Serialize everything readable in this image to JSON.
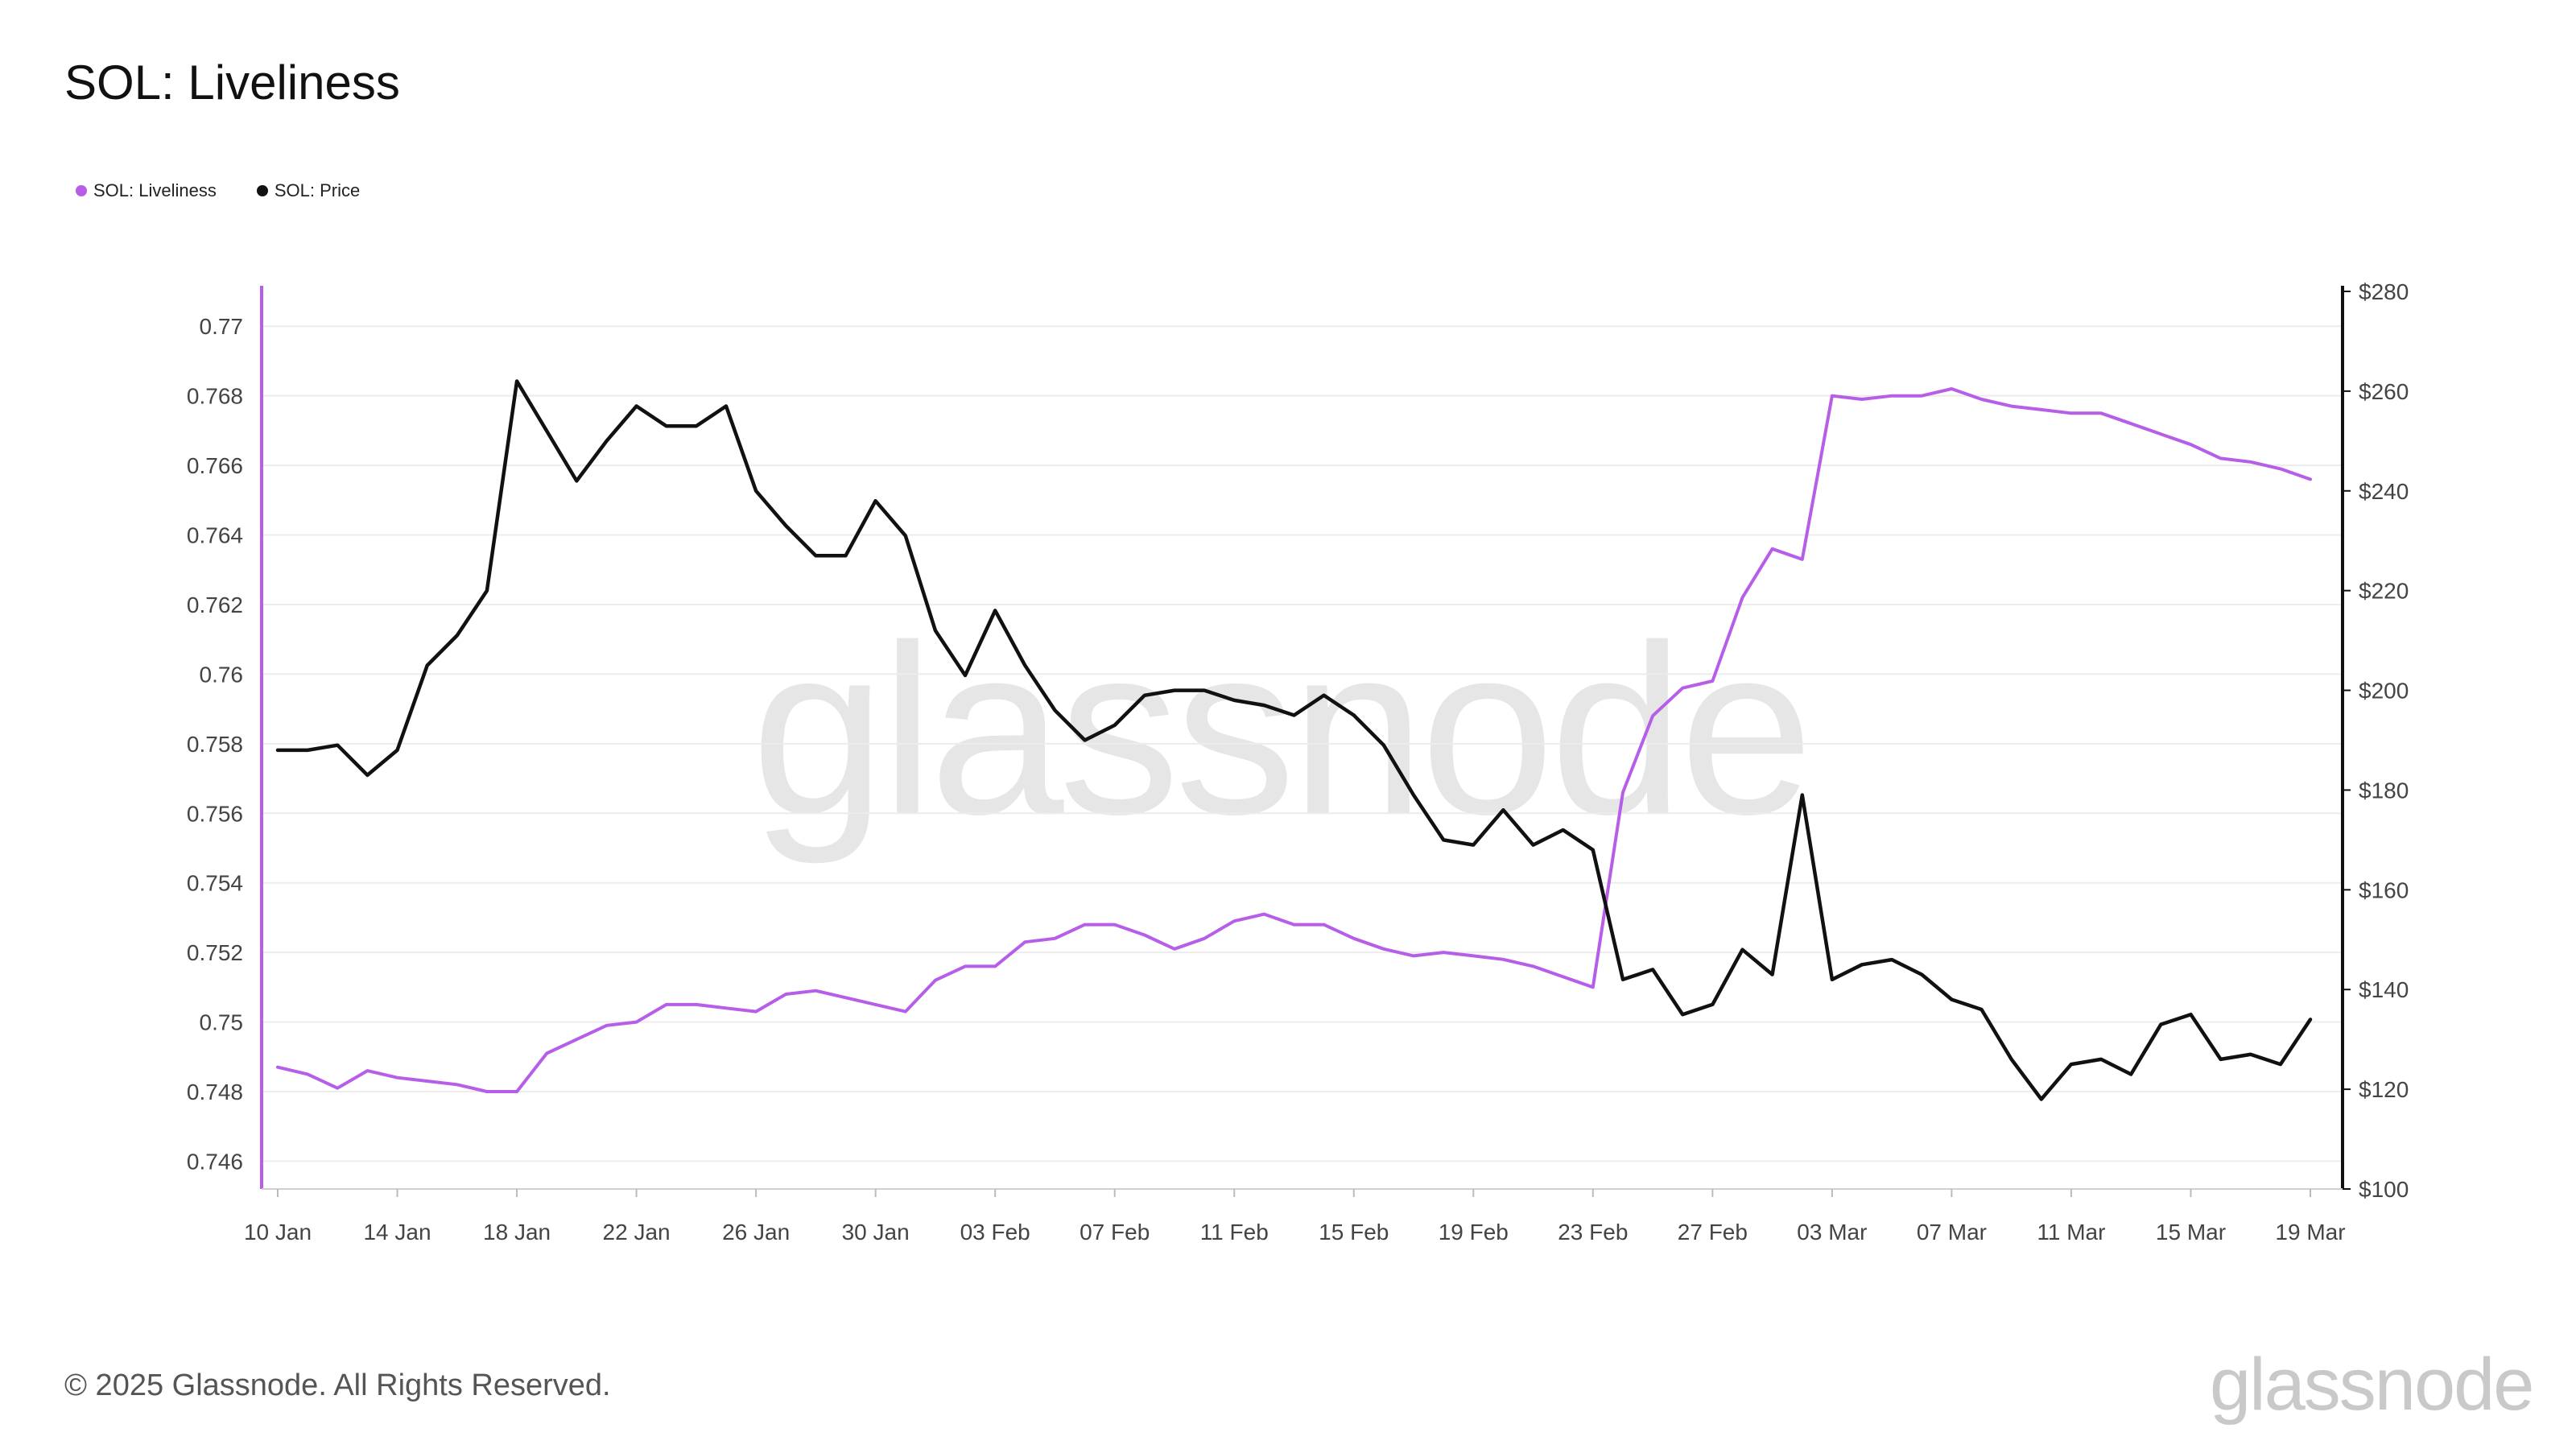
{
  "title": "SOL: Liveliness",
  "legend": [
    {
      "label": "SOL: Liveliness",
      "color": "#b65ee8"
    },
    {
      "label": "SOL: Price",
      "color": "#111111"
    }
  ],
  "watermark": "glassnode",
  "footer": {
    "copyright": "© 2025 Glassnode. All Rights Reserved.",
    "logo": "glassnode"
  },
  "chart_data": {
    "type": "line",
    "x_ticks": [
      "10 Jan",
      "14 Jan",
      "18 Jan",
      "22 Jan",
      "26 Jan",
      "30 Jan",
      "03 Feb",
      "07 Feb",
      "11 Feb",
      "15 Feb",
      "19 Feb",
      "23 Feb",
      "27 Feb",
      "03 Mar",
      "07 Mar",
      "11 Mar",
      "15 Mar",
      "19 Mar"
    ],
    "y_left": {
      "ticks": [
        "0.746",
        "0.748",
        "0.75",
        "0.752",
        "0.754",
        "0.756",
        "0.758",
        "0.76",
        "0.762",
        "0.764",
        "0.766",
        "0.768",
        "0.77"
      ],
      "range": [
        0.7452,
        0.771
      ],
      "color": "#b65ee8"
    },
    "y_right": {
      "ticks": [
        "$100",
        "$120",
        "$140",
        "$160",
        "$180",
        "$200",
        "$220",
        "$240",
        "$260",
        "$280"
      ],
      "range": [
        100,
        280
      ],
      "color": "#111111"
    },
    "grid": true,
    "series": [
      {
        "name": "SOL: Liveliness",
        "axis": "left",
        "color": "#b65ee8",
        "values": [
          0.7487,
          0.7485,
          0.7481,
          0.7486,
          0.7484,
          0.7483,
          0.7482,
          0.748,
          0.748,
          0.7491,
          0.7495,
          0.7499,
          0.75,
          0.7505,
          0.7505,
          0.7504,
          0.7503,
          0.7508,
          0.7509,
          0.7507,
          0.7505,
          0.7503,
          0.7512,
          0.7516,
          0.7516,
          0.7523,
          0.7524,
          0.7528,
          0.7528,
          0.7525,
          0.7521,
          0.7524,
          0.7529,
          0.7531,
          0.7528,
          0.7528,
          0.7524,
          0.7521,
          0.7519,
          0.752,
          0.7519,
          0.7518,
          0.7516,
          0.7513,
          0.751,
          0.7566,
          0.7588,
          0.7596,
          0.7598,
          0.7622,
          0.7636,
          0.7633,
          0.768,
          0.7679,
          0.768,
          0.768,
          0.7682,
          0.7679,
          0.7677,
          0.7676,
          0.7675,
          0.7675,
          0.7672,
          0.7669,
          0.7666,
          0.7662,
          0.7661,
          0.7659,
          0.7656
        ]
      },
      {
        "name": "SOL: Price",
        "axis": "right",
        "color": "#111111",
        "values": [
          188,
          188,
          189,
          183,
          188,
          205,
          211,
          220,
          262,
          252,
          242,
          250,
          257,
          253,
          253,
          257,
          240,
          233,
          227,
          227,
          238,
          231,
          212,
          203,
          216,
          205,
          196,
          190,
          193,
          199,
          200,
          200,
          198,
          197,
          195,
          199,
          195,
          189,
          179,
          170,
          169,
          176,
          169,
          172,
          168,
          142,
          144,
          135,
          137,
          148,
          143,
          179,
          142,
          145,
          146,
          143,
          138,
          136,
          126,
          118,
          125,
          126,
          123,
          133,
          135,
          126,
          127,
          125,
          134
        ]
      }
    ]
  }
}
